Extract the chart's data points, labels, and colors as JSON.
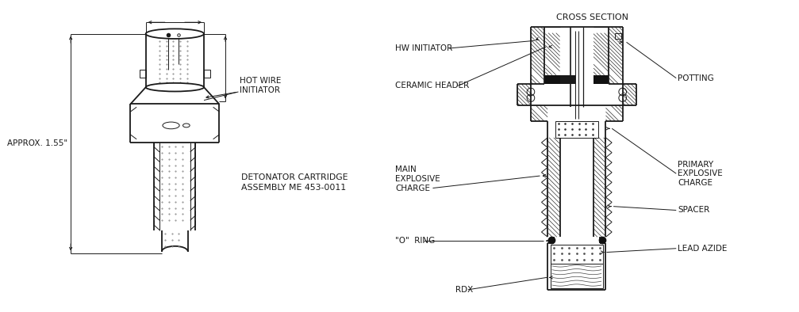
{
  "bg_color": "#ffffff",
  "line_color": "#1a1a1a",
  "left_labels": {
    "hot_wire_initiator": "HOT WIRE\nINITIATOR",
    "approx": "APPROX. 1.55\"",
    "detonator_cartridge_1": "DETONATOR CARTRIDGE",
    "detonator_cartridge_2": "ASSEMBLY ME 453-0011"
  },
  "right_labels": {
    "cross_section": "CROSS SECTION",
    "hw_initiator": "HW INITIATOR",
    "ceramic_header": "CERAMIC HEADER",
    "potting": "POTTING",
    "main_explosive_1": "MAIN",
    "main_explosive_2": "EXPLOSIVE",
    "main_explosive_3": "CHARGE",
    "primary_explosive_1": "PRIMARY",
    "primary_explosive_2": "EXPLOSIVE",
    "primary_explosive_3": "CHARGE",
    "spacer": "SPACER",
    "o_ring": "\"O\"  RING",
    "lead_azide": "LEAD AZIDE",
    "rdx": "RDX"
  },
  "font_size_label": 7.5,
  "font_size_title": 8.0
}
